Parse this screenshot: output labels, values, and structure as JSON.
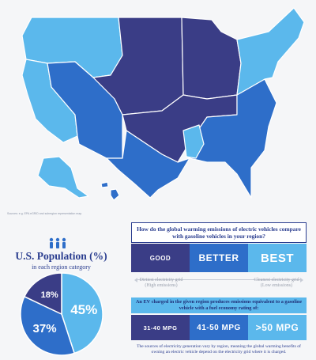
{
  "colors": {
    "good": "#3a3d86",
    "better": "#2e6ec9",
    "best": "#5bb8ec",
    "outline": "#ffffff",
    "title": "#2a3d8f"
  },
  "map": {
    "source_note": "Sources: e.g. EPA eGRID and subregion representation map.",
    "regions": [
      {
        "name": "northwest",
        "category": "best"
      },
      {
        "name": "california",
        "category": "best"
      },
      {
        "name": "southwest",
        "category": "better"
      },
      {
        "name": "rockies",
        "category": "good"
      },
      {
        "name": "midwest",
        "category": "good"
      },
      {
        "name": "upper-midwest",
        "category": "good"
      },
      {
        "name": "texas",
        "category": "better"
      },
      {
        "name": "southeast",
        "category": "better"
      },
      {
        "name": "northeast",
        "category": "best"
      },
      {
        "name": "alaska",
        "category": "best"
      },
      {
        "name": "hawaii",
        "category": "better"
      }
    ]
  },
  "population": {
    "title": "U.S. Population (%)",
    "subtitle": "in each region category",
    "icon": "people-icon",
    "slices": [
      {
        "label": "45%",
        "value": 45,
        "category": "best"
      },
      {
        "label": "37%",
        "value": 37,
        "category": "better"
      },
      {
        "label": "18%",
        "value": 18,
        "category": "good"
      }
    ]
  },
  "comparison": {
    "question": "How do the global warming emissions of electric vehicles compare with gasoline vehicles in your region?",
    "categories": [
      "GOOD",
      "BETTER",
      "BEST"
    ],
    "scale_left": "Dirtiest electricity grid (High emissions)",
    "scale_right": "Cleanest electricity grid (Low emissions)",
    "ev_note": "An EV charged in the given region produces emissions equivalent to a gasoline vehicle with a fuel economy rating of:",
    "mpg": [
      "31-40 MPG",
      "41-50 MPG",
      ">50 MPG"
    ],
    "footnote": "The sources of electricity generation vary by region, meaning the global warming benefits of owning an electric vehicle depend on the electricity grid where it is charged."
  }
}
